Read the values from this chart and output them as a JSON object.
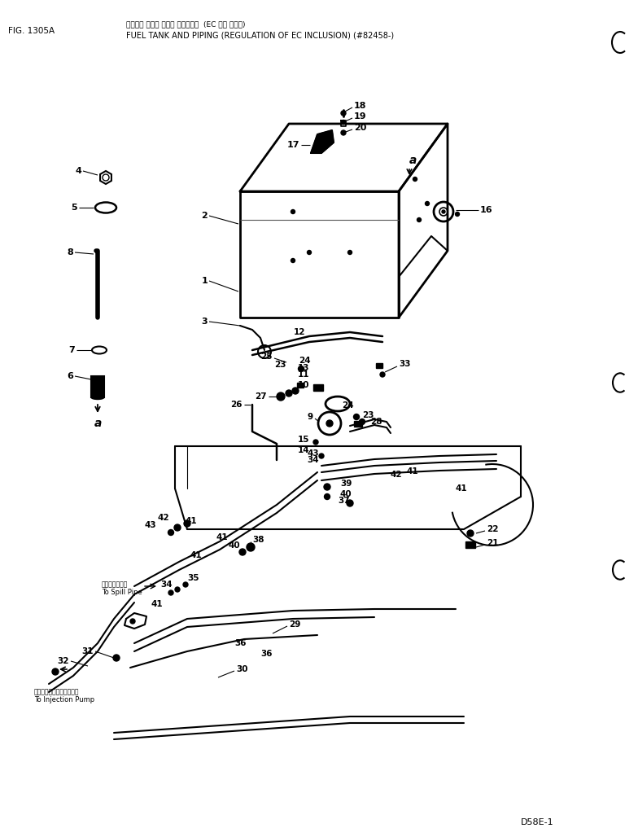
{
  "title_jp": "フェエル タンク および パイピング  (EC 規制 キセイ)",
  "title_en": "FUEL TANK AND PIPING (REGULATION OF EC INCLUSION) (#82458-)",
  "fig_label": "FIG. 1305A",
  "model": "D58E-1",
  "bg_color": "#ffffff",
  "line_color": "#000000",
  "text_color": "#000000",
  "jp_line2": "フェエル タンク および パイピング  (EC 規制 キセイ)"
}
